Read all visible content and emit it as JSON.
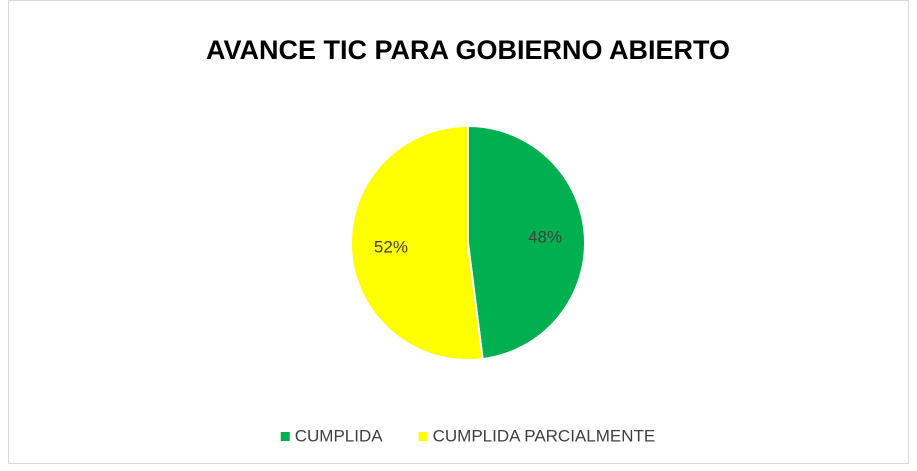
{
  "chart_data": {
    "type": "pie",
    "title": "AVANCE TIC PARA GOBIERNO ABIERTO",
    "categories": [
      "CUMPLIDA",
      "CUMPLIDA PARCIALMENTE"
    ],
    "values": [
      48,
      52
    ],
    "value_labels": [
      "48%",
      "52%"
    ],
    "colors": [
      "#00b050",
      "#ffff00"
    ],
    "legend": "bottom"
  }
}
